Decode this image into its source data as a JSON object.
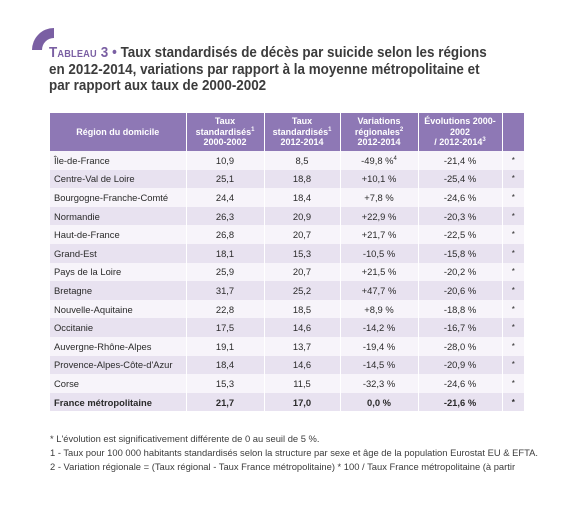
{
  "title": {
    "label": "Tableau 3",
    "bullet": "•",
    "lines": [
      "Taux standardisés de décès par suicide selon les régions",
      "en 2012-2014, variations par rapport à la moyenne métropolitaine et",
      "par rapport aux taux de 2000-2002"
    ]
  },
  "table": {
    "headers": {
      "region": "Région du domicile",
      "taux_2000": "Taux standardisés",
      "taux_2000_sup": "1",
      "taux_2000_years": "2000-2002",
      "taux_2012": "Taux standardisés",
      "taux_2012_sup": "1",
      "taux_2012_years": "2012-2014",
      "variation": "Variations régionales",
      "variation_sup": "2",
      "variation_years": "2012-2014",
      "evolution": "Évolutions 2000-2002",
      "evolution_years": "/ 2012-2014",
      "evolution_sup": "3"
    },
    "rows": [
      {
        "region": "Île-de-France",
        "t2000": "10,9",
        "t2012": "8,5",
        "variation": "-49,8 %",
        "variation_sup": "4",
        "evolution": "-21,4 %",
        "mark": "*"
      },
      {
        "region": "Centre-Val de Loire",
        "t2000": "25,1",
        "t2012": "18,8",
        "variation": "+10,1 %",
        "variation_sup": "",
        "evolution": "-25,4 %",
        "mark": "*"
      },
      {
        "region": "Bourgogne-Franche-Comté",
        "t2000": "24,4",
        "t2012": "18,4",
        "variation": "+7,8 %",
        "variation_sup": "",
        "evolution": "-24,6 %",
        "mark": "*"
      },
      {
        "region": "Normandie",
        "t2000": "26,3",
        "t2012": "20,9",
        "variation": "+22,9 %",
        "variation_sup": "",
        "evolution": "-20,3 %",
        "mark": "*"
      },
      {
        "region": "Haut-de-France",
        "t2000": "26,8",
        "t2012": "20,7",
        "variation": "+21,7 %",
        "variation_sup": "",
        "evolution": "-22,5 %",
        "mark": "*"
      },
      {
        "region": "Grand-Est",
        "t2000": "18,1",
        "t2012": "15,3",
        "variation": "-10,5 %",
        "variation_sup": "",
        "evolution": "-15,8 %",
        "mark": "*"
      },
      {
        "region": "Pays de la Loire",
        "t2000": "25,9",
        "t2012": "20,7",
        "variation": "+21,5 %",
        "variation_sup": "",
        "evolution": "-20,2 %",
        "mark": "*"
      },
      {
        "region": "Bretagne",
        "t2000": "31,7",
        "t2012": "25,2",
        "variation": "+47,7 %",
        "variation_sup": "",
        "evolution": "-20,6 %",
        "mark": "*"
      },
      {
        "region": "Nouvelle-Aquitaine",
        "t2000": "22,8",
        "t2012": "18,5",
        "variation": "+8,9 %",
        "variation_sup": "",
        "evolution": "-18,8 %",
        "mark": "*"
      },
      {
        "region": "Occitanie",
        "t2000": "17,5",
        "t2012": "14,6",
        "variation": "-14,2 %",
        "variation_sup": "",
        "evolution": "-16,7 %",
        "mark": "*"
      },
      {
        "region": "Auvergne-Rhône-Alpes",
        "t2000": "19,1",
        "t2012": "13,7",
        "variation": "-19,4 %",
        "variation_sup": "",
        "evolution": "-28,0 %",
        "mark": "*"
      },
      {
        "region": "Provence-Alpes-Côte-d'Azur",
        "t2000": "18,4",
        "t2012": "14,6",
        "variation": "-14,5 %",
        "variation_sup": "",
        "evolution": "-20,9 %",
        "mark": "*"
      },
      {
        "region": "Corse",
        "t2000": "15,3",
        "t2012": "11,5",
        "variation": "-32,3 %",
        "variation_sup": "",
        "evolution": "-24,6 %",
        "mark": "*"
      }
    ],
    "total": {
      "region": "France métropolitaine",
      "t2000": "21,7",
      "t2012": "17,0",
      "variation": "0,0 %",
      "evolution": "-21,6 %",
      "mark": "*"
    }
  },
  "notes": [
    "* L'évolution est significativement différente de 0 au seuil de 5 %.",
    "1 - Taux pour 100 000 habitants standardisés selon la structure par sexe et âge de la population Eurostat EU & EFTA.",
    "2 - Variation régionale = (Taux régional - Taux France métropolitaine) * 100 / Taux France métropolitaine (à partir"
  ],
  "colors": {
    "accent": "#7a5fa3",
    "header_bg": "#8e78b5",
    "row_even": "#e8e2f0",
    "row_odd": "#f7f4fa"
  }
}
